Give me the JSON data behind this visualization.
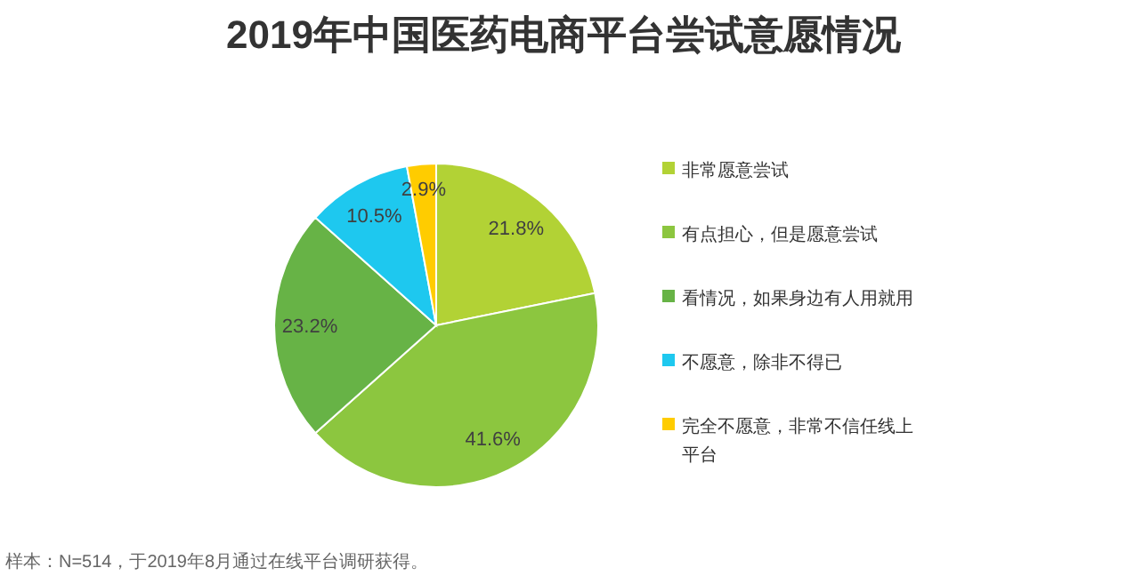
{
  "chart_data": {
    "type": "pie",
    "title": "2019年中国医药电商平台尝试意愿情况",
    "categories": [
      "非常愿意尝试",
      "有点担心，但是愿意尝试",
      "看情况，如果身边有人用就用",
      "不愿意，除非不得已",
      "完全不愿意，非常不信任线上平台"
    ],
    "values": [
      21.8,
      41.6,
      23.2,
      10.5,
      2.9
    ],
    "value_labels": [
      "21.8%",
      "41.6%",
      "23.2%",
      "10.5%",
      "2.9%"
    ],
    "colors": [
      "#b2d235",
      "#8cc63f",
      "#67b346",
      "#1ec8ef",
      "#ffcc00"
    ],
    "legend": "right",
    "annotations": [
      "样本：N=514，于2019年8月通过在线平台调研获得。"
    ]
  }
}
